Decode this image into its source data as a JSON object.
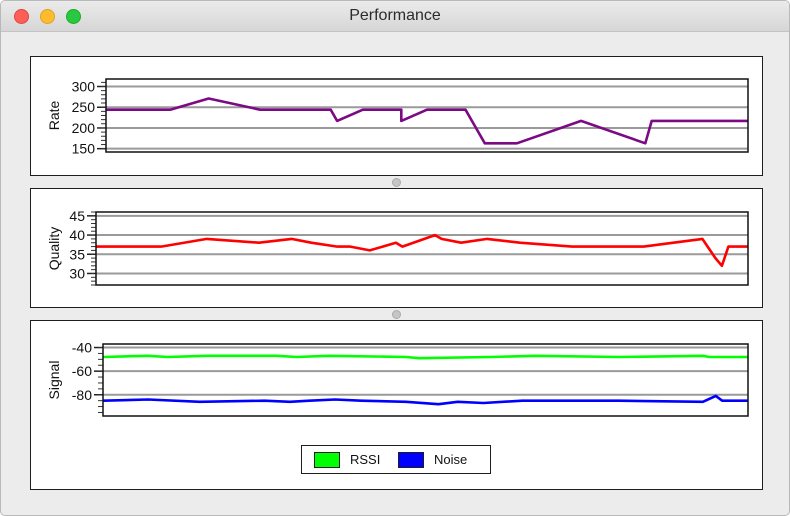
{
  "window": {
    "title": "Performance",
    "buttons": [
      "close",
      "minimize",
      "zoom"
    ]
  },
  "charts": {
    "rate": {
      "ylabel": "Rate",
      "ticks": [
        "300",
        "250",
        "200",
        "150"
      ]
    },
    "quality": {
      "ylabel": "Quality",
      "ticks": [
        "45",
        "40",
        "35",
        "30"
      ]
    },
    "signal": {
      "ylabel": "Signal",
      "ticks": [
        "-40",
        "-60",
        "-80"
      ]
    }
  },
  "legend": {
    "items": [
      {
        "label": "RSSI",
        "color": "#00ff00"
      },
      {
        "label": "Noise",
        "color": "#0000ff"
      }
    ]
  },
  "chart_data": [
    {
      "type": "line",
      "title": "Rate",
      "xlabel": "",
      "ylabel": "Rate",
      "ylim": [
        142,
        318
      ],
      "yticks": [
        150,
        200,
        250,
        300
      ],
      "grid": true,
      "series": [
        {
          "name": "Rate",
          "color": "#7b0a84",
          "x": [
            0,
            0.1,
            0.16,
            0.24,
            0.35,
            0.36,
            0.4,
            0.46,
            0.46,
            0.5,
            0.56,
            0.59,
            0.64,
            0.74,
            0.84,
            0.85,
            1.0
          ],
          "values": [
            244,
            244,
            271,
            244,
            244,
            217,
            244,
            244,
            217,
            244,
            244,
            163,
            163,
            217,
            163,
            217,
            217
          ]
        }
      ]
    },
    {
      "type": "line",
      "title": "Quality",
      "xlabel": "",
      "ylabel": "Quality",
      "ylim": [
        27,
        46
      ],
      "yticks": [
        30,
        35,
        40,
        45
      ],
      "grid": true,
      "series": [
        {
          "name": "Quality",
          "color": "#ff0000",
          "x": [
            0,
            0.1,
            0.17,
            0.25,
            0.3,
            0.33,
            0.37,
            0.39,
            0.42,
            0.46,
            0.47,
            0.52,
            0.53,
            0.56,
            0.6,
            0.65,
            0.73,
            0.84,
            0.93,
            0.95,
            0.96,
            0.97,
            1.0
          ],
          "values": [
            37,
            37,
            39,
            38,
            39,
            38,
            37,
            37,
            36,
            38,
            37,
            40,
            39,
            38,
            39,
            38,
            37,
            37,
            39,
            34,
            32,
            37,
            37
          ]
        }
      ]
    },
    {
      "type": "line",
      "title": "Signal",
      "xlabel": "",
      "ylabel": "Signal",
      "ylim": [
        -98,
        -37
      ],
      "yticks": [
        -40,
        -60,
        -80
      ],
      "grid": true,
      "legend": "bottom",
      "series": [
        {
          "name": "RSSI",
          "color": "#00ff00",
          "x": [
            0,
            0.07,
            0.1,
            0.16,
            0.27,
            0.3,
            0.35,
            0.47,
            0.49,
            0.6,
            0.67,
            0.8,
            0.93,
            0.94,
            1.0
          ],
          "values": [
            -48,
            -47,
            -48,
            -47,
            -47,
            -48,
            -47,
            -48,
            -49,
            -48,
            -47,
            -48,
            -47,
            -48,
            -48
          ]
        },
        {
          "name": "Noise",
          "color": "#0000ff",
          "x": [
            0,
            0.07,
            0.15,
            0.25,
            0.29,
            0.32,
            0.36,
            0.4,
            0.47,
            0.52,
            0.55,
            0.59,
            0.65,
            0.8,
            0.93,
            0.95,
            0.96,
            1.0
          ],
          "values": [
            -85,
            -84,
            -86,
            -85,
            -86,
            -85,
            -84,
            -85,
            -86,
            -88,
            -86,
            -87,
            -85,
            -85,
            -86,
            -81,
            -85,
            -85
          ]
        }
      ]
    }
  ]
}
